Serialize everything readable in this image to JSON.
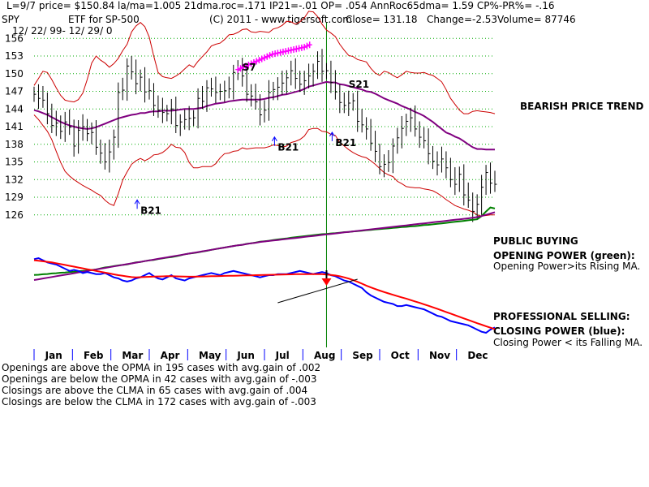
{
  "header": {
    "line1": "L=9/7  price= $150.84  la/ma=1.005 21dma.roc=.171 IP21=-.01 OP= .054 AnnRoc65dma= 1.59 CP%-PR%= -.16",
    "ticker": "SPY",
    "fund": "ETF for SP-500",
    "copyright": "(C) 2011 - www.tigersoft.com",
    "close": "Close=  131.18",
    "change": "Change=-2.53",
    "volume": "Volume=  87746",
    "dates": "12/ 22/ 99-  12/ 29/ 0"
  },
  "annotations": {
    "bearish": "BEARISH PRICE TREND",
    "public_buying": "PUBLIC BUYING",
    "opening_power": "OPENING POWER (green):",
    "opening_power_desc": "Opening Power>its Rising MA.",
    "prof_selling": "PROFESSIONAL SELLING:",
    "closing_power": "CLOSING POWER (blue):",
    "closing_power_desc": "Closing Power < its Falling MA.",
    "signals": [
      {
        "label": "B21",
        "price": 126.2
      },
      {
        "label": "B21",
        "price": 136.9
      },
      {
        "label": "B21",
        "price": 137.7
      },
      {
        "label": "S7",
        "price": 150.5
      },
      {
        "label": "S21",
        "price": 147.6
      }
    ]
  },
  "stats": [
    "Openings are above the OPMA in  195 cases with avg.gain of  .002",
    "Openings are below the OPMA in  42 cases with avg.gain of -.003",
    "Closings are above the CLMA in  65 cases with avg.gain of  .004",
    "Closings are below the CLMA in  172 cases with avg.gain of -.003"
  ],
  "colors": {
    "price_bars": "#000000",
    "bands": "#cc0000",
    "ma": "#800080",
    "grid": "#00aa00",
    "opening_power": "#008000",
    "closing_power": "#0000ff",
    "closing_ma": "#ff0000",
    "signal_arrow": "#0000ff",
    "sell_marks": "#ff00ff",
    "vline": "#008000"
  },
  "chart_data": {
    "type": "line",
    "ticker": "SPY",
    "y_ticks": [
      126,
      129,
      132,
      135,
      138,
      141,
      144,
      147,
      150,
      153,
      156
    ],
    "ylim": [
      125,
      157
    ],
    "months": [
      "Jan",
      "Feb",
      "Mar",
      "Apr",
      "May",
      "Jun",
      "Jul",
      "Aug",
      "Sep",
      "Oct",
      "Nov",
      "Dec"
    ],
    "grid": true,
    "close": [
      146.5,
      145.8,
      145.5,
      143.2,
      141.2,
      141.6,
      140.2,
      141.8,
      140.9,
      137.7,
      140.4,
      141.0,
      139.8,
      140.0,
      137.5,
      136.5,
      135.0,
      136.7,
      139.2,
      146.8,
      147.2,
      151.3,
      150.3,
      148.3,
      149.4,
      146.9,
      147.1,
      144.6,
      143.8,
      143.4,
      143.2,
      144.0,
      141.2,
      141.8,
      142.2,
      142.4,
      142.5,
      145.8,
      145.3,
      147.6,
      147.4,
      146.8,
      147.0,
      147.1,
      147.4,
      150.2,
      150.6,
      149.6,
      146.5,
      146.2,
      145.2,
      143.0,
      143.8,
      146.8,
      147.3,
      147.7,
      148.4,
      149.3,
      150.5,
      149.2,
      148.2,
      148.8,
      149.6,
      150.4,
      152.1,
      150.4,
      150.5,
      148.5,
      146.9,
      145.1,
      144.6,
      145.0,
      145.4,
      141.9,
      141.3,
      140.6,
      138.2,
      136.8,
      134.2,
      134.6,
      134.9,
      137.7,
      139.1,
      140.7,
      141.9,
      142.5,
      140.6,
      139.2,
      138.6,
      136.4,
      135.1,
      134.5,
      135.5,
      134.0,
      132.0,
      131.2,
      132.9,
      129.4,
      128.5,
      126.6,
      127.8,
      130.7,
      133.2,
      131.4,
      131.2
    ],
    "upper_band": [
      148.0,
      149.2,
      150.4,
      150.2,
      149.0,
      147.6,
      146.3,
      145.5,
      145.3,
      145.2,
      145.6,
      146.7,
      149.0,
      151.8,
      153.0,
      152.3,
      151.8,
      151.1,
      151.7,
      152.6,
      153.9,
      155.0,
      157.1,
      158.1,
      158.7,
      158.0,
      156.2,
      153.0,
      150.2,
      149.5,
      149.3,
      149.2,
      149.6,
      150.1,
      150.8,
      151.5,
      151.1,
      152.1,
      152.9,
      153.7,
      154.7,
      155.0,
      155.2,
      155.8,
      156.6,
      156.7,
      157.0,
      157.5,
      157.6,
      157.1,
      157.0,
      157.2,
      157.1,
      157.0,
      157.6,
      157.8,
      158.2,
      158.9,
      158.8,
      158.4,
      158.8,
      159.5,
      160.6,
      160.5,
      159.7,
      158.4,
      157.4,
      156.9,
      156.3,
      155.0,
      154.0,
      153.1,
      152.9,
      152.4,
      152.2,
      152.0,
      150.9,
      150.1,
      149.7,
      150.4,
      150.2,
      149.7,
      149.3,
      149.8,
      150.4,
      150.2,
      150.1,
      150.1,
      150.2,
      149.9,
      149.7,
      149.2,
      148.6,
      147.3,
      145.8,
      144.8,
      143.8,
      143.2,
      143.2,
      143.6,
      143.7,
      143.6,
      143.5,
      143.4,
      143.2
    ],
    "lower_band": [
      143.0,
      142.2,
      141.2,
      140.2,
      138.8,
      136.8,
      134.9,
      133.4,
      132.6,
      132.0,
      131.5,
      131.0,
      130.6,
      130.2,
      129.7,
      129.3,
      128.5,
      127.9,
      127.6,
      129.6,
      131.9,
      133.3,
      134.6,
      135.2,
      135.6,
      135.2,
      135.6,
      136.2,
      136.3,
      136.6,
      137.2,
      138.0,
      137.5,
      137.4,
      136.6,
      134.9,
      134.0,
      134.0,
      134.2,
      134.2,
      134.2,
      134.7,
      135.7,
      136.4,
      136.5,
      136.8,
      136.9,
      137.4,
      137.2,
      137.3,
      137.4,
      137.4,
      137.4,
      137.6,
      137.9,
      137.8,
      137.5,
      137.7,
      138.3,
      138.5,
      138.8,
      139.4,
      140.5,
      140.7,
      140.7,
      140.2,
      140.1,
      139.7,
      139.5,
      138.3,
      137.7,
      137.1,
      136.6,
      136.2,
      135.9,
      135.7,
      135.2,
      134.6,
      133.9,
      133.2,
      132.8,
      132.5,
      131.7,
      131.3,
      130.8,
      130.7,
      130.6,
      130.6,
      130.4,
      130.3,
      130.1,
      129.7,
      129.2,
      128.6,
      128.1,
      127.6,
      127.3,
      127.0,
      126.8,
      126.5,
      126.0,
      125.8,
      125.9,
      126.0,
      126.0
    ],
    "ma": [
      143.8,
      143.6,
      143.3,
      143.0,
      142.6,
      142.2,
      141.8,
      141.5,
      141.2,
      141.0,
      140.8,
      140.7,
      140.6,
      140.7,
      140.9,
      141.2,
      141.5,
      141.8,
      142.1,
      142.4,
      142.6,
      142.8,
      143.0,
      143.1,
      143.3,
      143.3,
      143.5,
      143.6,
      143.6,
      143.7,
      143.7,
      143.7,
      143.8,
      143.9,
      144.0,
      144.0,
      144.0,
      144.1,
      144.2,
      144.5,
      144.7,
      144.9,
      145.0,
      145.1,
      145.3,
      145.4,
      145.5,
      145.6,
      145.6,
      145.6,
      145.6,
      145.6,
      145.7,
      145.9,
      146.0,
      146.2,
      146.4,
      146.5,
      146.7,
      146.9,
      147.1,
      147.4,
      147.8,
      148.0,
      148.2,
      148.4,
      148.6,
      148.5,
      148.5,
      148.2,
      148.1,
      147.9,
      147.7,
      147.5,
      147.3,
      147.0,
      146.9,
      146.6,
      146.2,
      145.8,
      145.5,
      145.2,
      144.9,
      144.5,
      144.2,
      143.9,
      143.5,
      143.2,
      142.8,
      142.3,
      141.8,
      141.2,
      140.6,
      140.0,
      139.7,
      139.3,
      139.0,
      138.5,
      138.0,
      137.5,
      137.2,
      137.2,
      137.1,
      137.1,
      137.1
    ],
    "opening_power": [
      5.0,
      5.1,
      5.3,
      5.4,
      5.6,
      5.7,
      5.9,
      6.0,
      6.2,
      6.3,
      6.5,
      6.6,
      6.8,
      7.0,
      7.2,
      7.6,
      8.0,
      8.2,
      8.5,
      8.8,
      9.0,
      9.2,
      9.6,
      10.0,
      10.2,
      10.5,
      10.8,
      11.0,
      11.3,
      11.6,
      11.9,
      12.1,
      12.4,
      12.8,
      13.2,
      13.5,
      13.7,
      14.0,
      14.3,
      14.6,
      15.0,
      15.3,
      15.6,
      15.9,
      16.2,
      16.5,
      16.8,
      17.0,
      17.4,
      17.6,
      17.9,
      18.2,
      18.4,
      18.6,
      18.9,
      19.1,
      19.3,
      19.5,
      19.8,
      20.0,
      20.2,
      20.4,
      20.6,
      20.8,
      21.0,
      21.2,
      21.3,
      21.5,
      21.6,
      21.8,
      22.0,
      22.1,
      22.3,
      22.4,
      22.6,
      22.8,
      22.9,
      23.1,
      23.2,
      23.4,
      23.5,
      23.7,
      23.8,
      24.0,
      24.1,
      24.3,
      24.4,
      24.6,
      24.8,
      24.9,
      25.1,
      25.3,
      25.5,
      25.7,
      25.9,
      26.1,
      26.3,
      26.5,
      26.7,
      26.9,
      27.1,
      28.4,
      30.2,
      31.8,
      31.4
    ],
    "opening_power_ma": [
      3.0,
      3.3,
      3.6,
      3.9,
      4.2,
      4.5,
      4.8,
      5.1,
      5.4,
      5.7,
      6.0,
      6.3,
      6.6,
      6.9,
      7.2,
      7.5,
      7.8,
      8.1,
      8.4,
      8.7,
      9.0,
      9.3,
      9.6,
      9.9,
      10.2,
      10.5,
      10.8,
      11.1,
      11.4,
      11.7,
      12.0,
      12.3,
      12.6,
      12.9,
      13.2,
      13.5,
      13.8,
      14.1,
      14.4,
      14.7,
      15.0,
      15.3,
      15.6,
      15.9,
      16.2,
      16.5,
      16.8,
      17.0,
      17.3,
      17.6,
      17.8,
      18.1,
      18.3,
      18.5,
      18.7,
      18.9,
      19.1,
      19.3,
      19.5,
      19.7,
      19.9,
      20.1,
      20.3,
      20.5,
      20.7,
      20.9,
      21.1,
      21.3,
      21.5,
      21.7,
      21.9,
      22.1,
      22.3,
      22.5,
      22.7,
      22.9,
      23.1,
      23.3,
      23.5,
      23.7,
      23.9,
      24.1,
      24.3,
      24.5,
      24.7,
      24.9,
      25.1,
      25.3,
      25.5,
      25.7,
      25.9,
      26.1,
      26.3,
      26.5,
      26.7,
      26.9,
      27.1,
      27.3,
      27.5,
      27.7,
      28.0,
      28.4,
      28.9,
      29.4,
      29.9
    ],
    "closing_power": [
      23.0,
      24.0,
      22.0,
      20.0,
      19.0,
      18.0,
      16.0,
      14.0,
      12.0,
      13.0,
      12.0,
      10.0,
      11.0,
      10.0,
      9.0,
      9.0,
      10.0,
      8.0,
      6.0,
      5.0,
      3.0,
      2.0,
      3.0,
      5.0,
      6.0,
      8.0,
      10.0,
      7.0,
      5.0,
      4.0,
      6.0,
      8.0,
      5.0,
      4.0,
      3.0,
      5.0,
      6.0,
      7.0,
      8.0,
      9.0,
      10.0,
      9.0,
      8.0,
      10.0,
      11.0,
      12.0,
      11.0,
      10.0,
      9.0,
      8.0,
      7.0,
      6.0,
      7.0,
      8.0,
      8.0,
      9.0,
      9.0,
      9.0,
      10.0,
      11.0,
      12.0,
      11.0,
      10.0,
      9.0,
      10.0,
      11.0,
      10.0,
      8.0,
      7.0,
      5.0,
      3.0,
      2.0,
      0.0,
      -2.0,
      -4.0,
      -8.0,
      -11.0,
      -13.0,
      -15.0,
      -17.0,
      -18.0,
      -19.0,
      -21.0,
      -21.0,
      -20.0,
      -21.0,
      -22.0,
      -23.0,
      -24.0,
      -26.0,
      -28.0,
      -30.0,
      -31.0,
      -33.0,
      -35.0,
      -36.0,
      -37.0,
      -38.0,
      -39.0,
      -41.0,
      -43.0,
      -45.0,
      -46.0,
      -43.0,
      -41.0
    ],
    "closing_power_ma": [
      22.0,
      21.5,
      21.0,
      20.5,
      20.0,
      19.2,
      18.4,
      17.6,
      16.8,
      16.0,
      15.2,
      14.4,
      13.6,
      12.8,
      12.0,
      11.2,
      10.4,
      9.6,
      8.8,
      8.0,
      7.4,
      6.8,
      6.2,
      6.0,
      6.1,
      6.3,
      6.5,
      6.7,
      6.8,
      6.9,
      7.0,
      7.0,
      6.9,
      6.8,
      6.7,
      6.6,
      6.6,
      6.7,
      6.8,
      6.9,
      7.0,
      7.1,
      7.2,
      7.3,
      7.4,
      7.5,
      7.6,
      7.7,
      7.8,
      7.9,
      8.0,
      8.1,
      8.2,
      8.3,
      8.4,
      8.5,
      8.6,
      8.7,
      8.8,
      8.9,
      9.0,
      9.0,
      9.0,
      9.0,
      9.0,
      8.9,
      8.6,
      8.2,
      7.7,
      7.0,
      6.0,
      4.8,
      3.4,
      1.8,
      0.0,
      -1.8,
      -3.5,
      -5.0,
      -6.4,
      -7.8,
      -9.1,
      -10.4,
      -11.6,
      -12.8,
      -14.0,
      -15.3,
      -16.6,
      -17.9,
      -19.3,
      -20.7,
      -22.1,
      -23.5,
      -25.0,
      -26.5,
      -28.0,
      -29.5,
      -31.0,
      -32.5,
      -34.0,
      -35.5,
      -37.0,
      -38.4,
      -39.8,
      -41.2,
      -42.5
    ],
    "sell_marks": [
      150.7,
      150.9,
      151.1,
      151.3,
      151.5,
      151.7,
      151.9,
      152.1,
      152.3,
      152.5,
      152.7,
      152.9,
      153.1,
      153.3,
      153.4,
      153.5,
      153.6,
      153.7,
      153.8,
      153.9,
      154.0,
      154.1,
      154.2,
      154.3,
      154.4,
      154.5,
      154.7,
      154.9
    ]
  }
}
